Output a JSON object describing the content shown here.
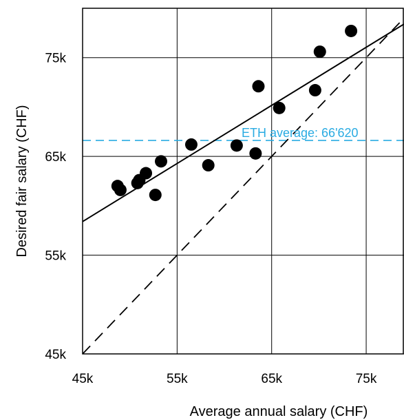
{
  "chart_data": {
    "type": "scatter",
    "xlabel": "Average annual salary (CHF)",
    "ylabel": "Desired fair salary (CHF)",
    "xlim": [
      45000,
      79000
    ],
    "ylim": [
      45000,
      80000
    ],
    "x_ticks": [
      45000,
      55000,
      65000,
      75000
    ],
    "y_ticks": [
      45000,
      55000,
      65000,
      75000
    ],
    "x_tick_labels": [
      "45k",
      "55k",
      "65k",
      "75k"
    ],
    "y_tick_labels": [
      "45k",
      "55k",
      "65k",
      "75k"
    ],
    "grid": true,
    "points": [
      {
        "x": 48700,
        "y": 62000
      },
      {
        "x": 49000,
        "y": 61600
      },
      {
        "x": 50800,
        "y": 62300
      },
      {
        "x": 51000,
        "y": 62600
      },
      {
        "x": 51700,
        "y": 63300
      },
      {
        "x": 52700,
        "y": 61100
      },
      {
        "x": 53300,
        "y": 64500
      },
      {
        "x": 56500,
        "y": 66200
      },
      {
        "x": 58300,
        "y": 64100
      },
      {
        "x": 61300,
        "y": 66100
      },
      {
        "x": 63300,
        "y": 65300
      },
      {
        "x": 63600,
        "y": 72100
      },
      {
        "x": 65800,
        "y": 69900
      },
      {
        "x": 69600,
        "y": 71700
      },
      {
        "x": 70100,
        "y": 75600
      },
      {
        "x": 73400,
        "y": 77700
      }
    ],
    "fit_line": {
      "x": [
        45000,
        79000
      ],
      "y": [
        58400,
        78400
      ]
    },
    "identity_line": {
      "x": [
        45000,
        79000
      ],
      "y": [
        45000,
        79000
      ]
    },
    "hline": {
      "y": 66620,
      "label": "ETH average: 66'620",
      "color": "#29abe2"
    },
    "colors": {
      "points": "#000000",
      "fit": "#000000",
      "identity": "#000000",
      "grid": "#000000"
    }
  }
}
